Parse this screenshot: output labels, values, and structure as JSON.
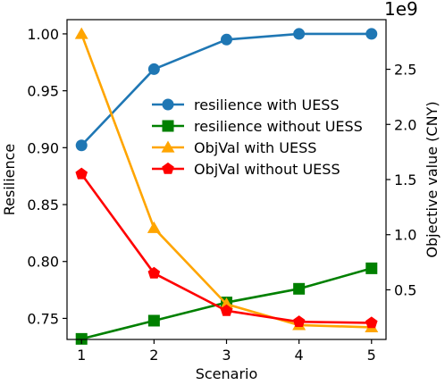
{
  "chart_data": {
    "type": "line",
    "title": "",
    "xlabel": "Scenario",
    "ylabel_left": "Resilience",
    "ylabel_right": "Objective value (CNY)",
    "right_axis_offset_label": "1e9",
    "x": [
      1,
      2,
      3,
      4,
      5
    ],
    "x_ticks": [
      1,
      2,
      3,
      4,
      5
    ],
    "x_tick_labels": [
      "1",
      "2",
      "3",
      "4",
      "5"
    ],
    "xlim": [
      0.8,
      5.2
    ],
    "ylim_left": [
      0.7315,
      1.0125
    ],
    "ylim_right": [
      0.05,
      2.95
    ],
    "left_ticks": [
      0.75,
      0.8,
      0.85,
      0.9,
      0.95,
      1.0
    ],
    "left_tick_labels": [
      "0.75",
      "0.80",
      "0.85",
      "0.90",
      "0.95",
      "1.00"
    ],
    "right_ticks": [
      0.5,
      1.0,
      1.5,
      2.0,
      2.5
    ],
    "right_tick_labels": [
      "0.5",
      "1.0",
      "1.5",
      "2.0",
      "2.5"
    ],
    "grid": false,
    "legend_position": "center-right",
    "series": [
      {
        "name": "resilience with UESS",
        "axis": "left",
        "color": "#1f77b4",
        "marker": "circle",
        "values": [
          0.902,
          0.969,
          0.995,
          1.0,
          1.0
        ]
      },
      {
        "name": "resilience without UESS",
        "axis": "left",
        "color": "#008000",
        "marker": "square",
        "values": [
          0.732,
          0.748,
          0.764,
          0.776,
          0.794
        ]
      },
      {
        "name": "ObjVal with UESS",
        "axis": "right",
        "color": "#ffa500",
        "marker": "triangle",
        "values": [
          2.82,
          1.06,
          0.37,
          0.18,
          0.16
        ]
      },
      {
        "name": "ObjVal without UESS",
        "axis": "right",
        "color": "#ff0000",
        "marker": "pentagon",
        "values": [
          1.55,
          0.65,
          0.31,
          0.21,
          0.2
        ]
      }
    ]
  }
}
